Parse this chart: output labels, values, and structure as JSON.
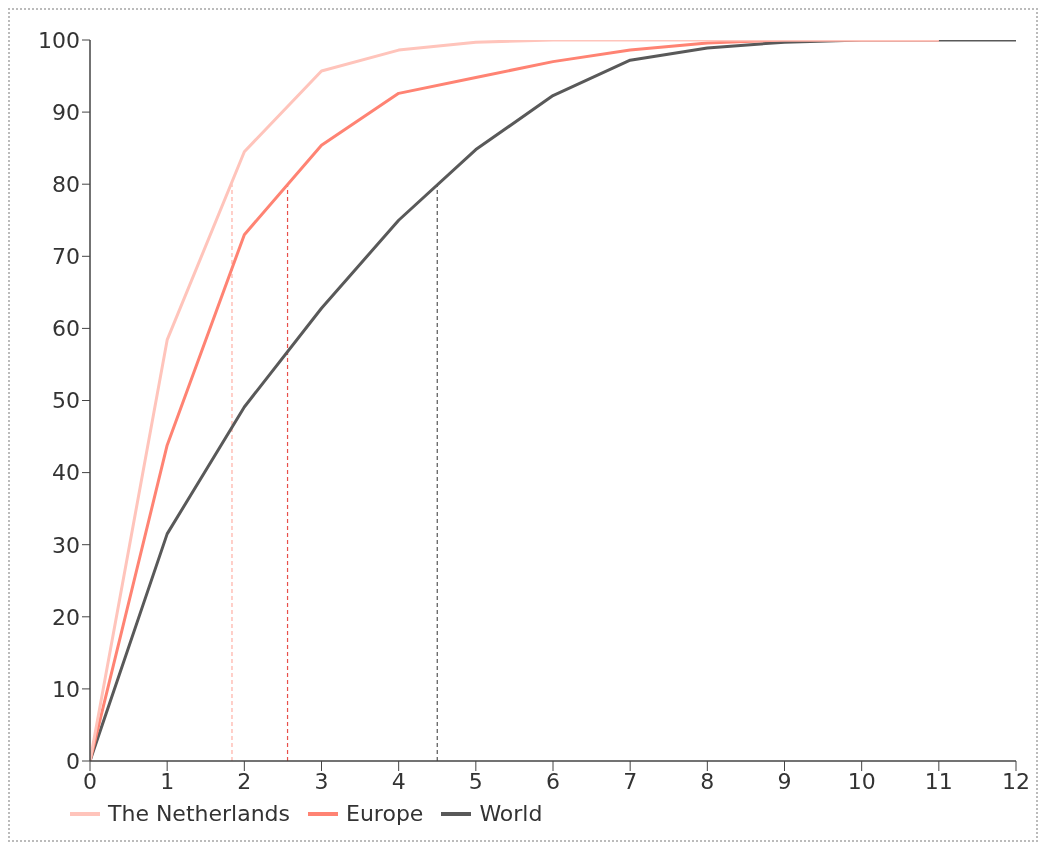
{
  "chart_data": {
    "type": "line",
    "x": [
      0,
      1,
      2,
      3,
      4,
      5,
      6,
      7,
      8,
      9,
      10,
      11
    ],
    "series": [
      {
        "name": "The Netherlands",
        "color": "#ffc4bb",
        "values": [
          0,
          58.4,
          84.5,
          95.7,
          98.6,
          99.7,
          100,
          100,
          100,
          100,
          100,
          100
        ]
      },
      {
        "name": "Europe",
        "color": "#ff8373",
        "values": [
          0,
          43.8,
          73,
          85.4,
          92.6,
          94.8,
          97,
          98.6,
          99.6,
          100,
          100,
          100
        ]
      },
      {
        "name": "World",
        "color": "#595959",
        "x": [
          0,
          1,
          2,
          3,
          4,
          5,
          6,
          7,
          8,
          9,
          10,
          11,
          12
        ],
        "values": [
          0,
          31.5,
          49.1,
          62.8,
          75,
          84.8,
          92.3,
          97.2,
          98.9,
          99.7,
          100,
          100,
          100
        ]
      },
      {
        "color": "#ffb0a5",
        "x": [
          1.84,
          1.84
        ],
        "values": [
          0,
          80
        ],
        "line_style": "dashed"
      },
      {
        "color": "#e8504a",
        "x": [
          2.56,
          2.56
        ],
        "values": [
          0,
          80
        ],
        "line_style": "dashed"
      },
      {
        "color": "#555555",
        "x": [
          4.5,
          4.5
        ],
        "values": [
          0,
          80
        ],
        "line_style": "dashed"
      }
    ],
    "xlim": [
      0,
      12
    ],
    "xticks": [
      0,
      1,
      2,
      3,
      4,
      5,
      6,
      7,
      8,
      9,
      10,
      11,
      12
    ],
    "ylim": [
      0,
      100
    ],
    "yticks": [
      0,
      10,
      20,
      30,
      40,
      50,
      60,
      70,
      80,
      90,
      100
    ],
    "grid": false,
    "legend": "bottom left",
    "marker": "none",
    "line_style": "solid"
  }
}
